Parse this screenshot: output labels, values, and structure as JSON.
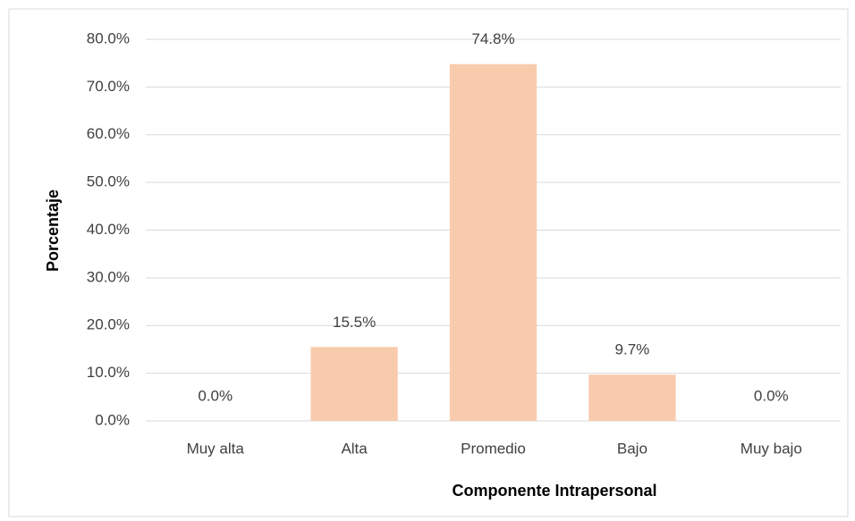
{
  "chart_data": {
    "type": "bar",
    "categories": [
      "Muy alta",
      "Alta",
      "Promedio",
      "Bajo",
      "Muy bajo"
    ],
    "values": [
      0,
      15.5,
      74.8,
      9.7,
      0
    ],
    "value_labels": [
      "0.0%",
      "15.5%",
      "74.8%",
      "9.7%",
      "0.0%"
    ],
    "color": "#f8cbad",
    "x_label": "Componente Intrapersonal",
    "y_label": "Porcentaje",
    "ylim": [
      0,
      80
    ],
    "yticks": [
      {
        "value": 0,
        "label": "0.0%"
      },
      {
        "value": 10,
        "label": "10.0%"
      },
      {
        "value": 20,
        "label": "20.0%"
      },
      {
        "value": 30,
        "label": "30.0%"
      },
      {
        "value": 40,
        "label": "40.0%"
      },
      {
        "value": 50,
        "label": "50.0%"
      },
      {
        "value": 60,
        "label": "60.0%"
      },
      {
        "value": 70,
        "label": "70.0%"
      },
      {
        "value": 80,
        "label": "80.0%"
      }
    ],
    "grid": true
  }
}
